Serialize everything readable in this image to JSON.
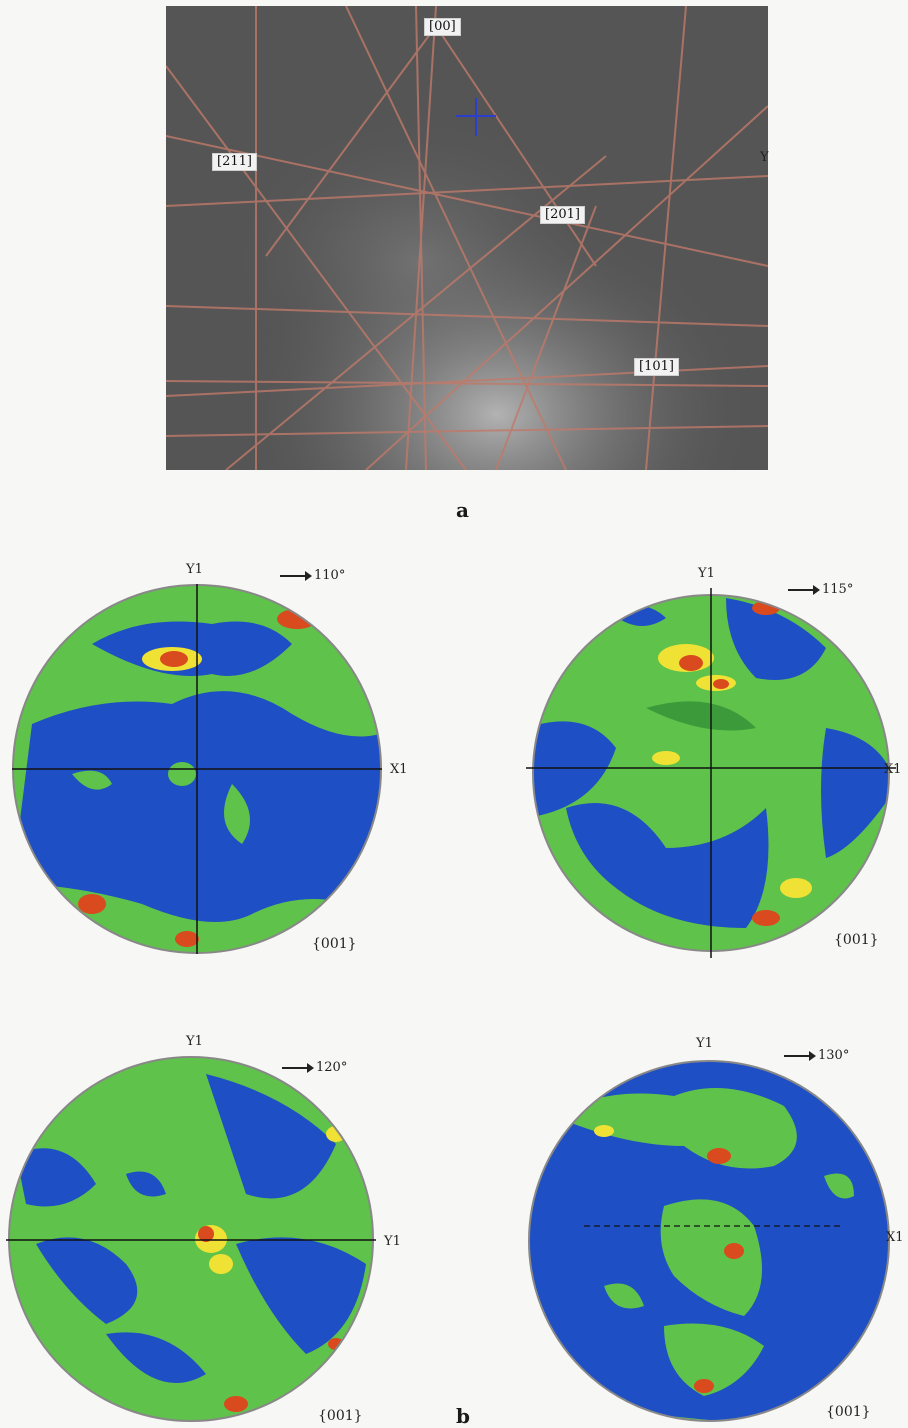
{
  "figure_a": {
    "pole_labels": [
      "[00]",
      "[211]",
      "[201]",
      "[101]"
    ],
    "edge_mark": "Y",
    "panel_label": "a"
  },
  "figure_b": {
    "panel_label": "b",
    "plots": [
      {
        "top_label": "Y1",
        "side_label": "X1",
        "angle": "110°",
        "plane": "{001}"
      },
      {
        "top_label": "Y1",
        "side_label": "X1",
        "angle": "115°",
        "plane": "{001}"
      },
      {
        "top_label": "Y1",
        "side_label": "Y1",
        "angle": "120°",
        "plane": "{001}"
      },
      {
        "top_label": "Y1",
        "side_label": "X1",
        "angle": "130°",
        "plane": "{001}"
      }
    ]
  },
  "colors": {
    "low": "#1f4fc4",
    "mid": "#5fc24a",
    "mid_dark": "#3c9a3a",
    "high": "#f0e234",
    "peak": "#d94a1f",
    "pattern_bg": "#4e4e4e",
    "band": "#c07a6a",
    "cross": "#2a3fd0"
  }
}
